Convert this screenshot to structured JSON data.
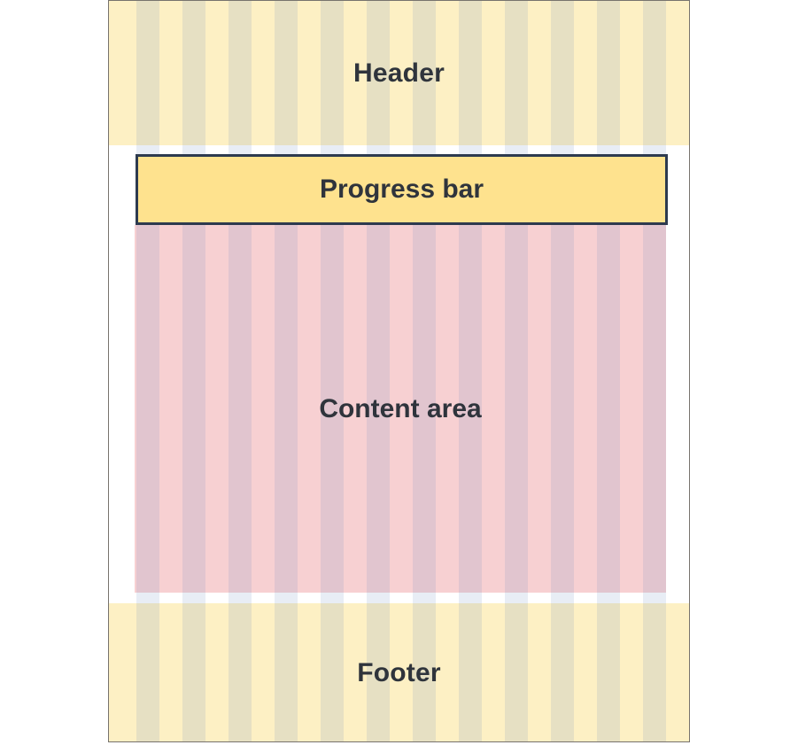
{
  "diagram": {
    "header_label": "Header",
    "progress_label": "Progress bar",
    "content_label": "Content area",
    "footer_label": "Footer"
  },
  "colors": {
    "band_fill": "#fdf0c4",
    "content_fill": "#f7d0d2",
    "progress_fill": "#fee28e",
    "progress_border": "#2d3a4f",
    "text": "#2f343c",
    "column_overlay": "rgba(110,140,190,0.16)"
  }
}
